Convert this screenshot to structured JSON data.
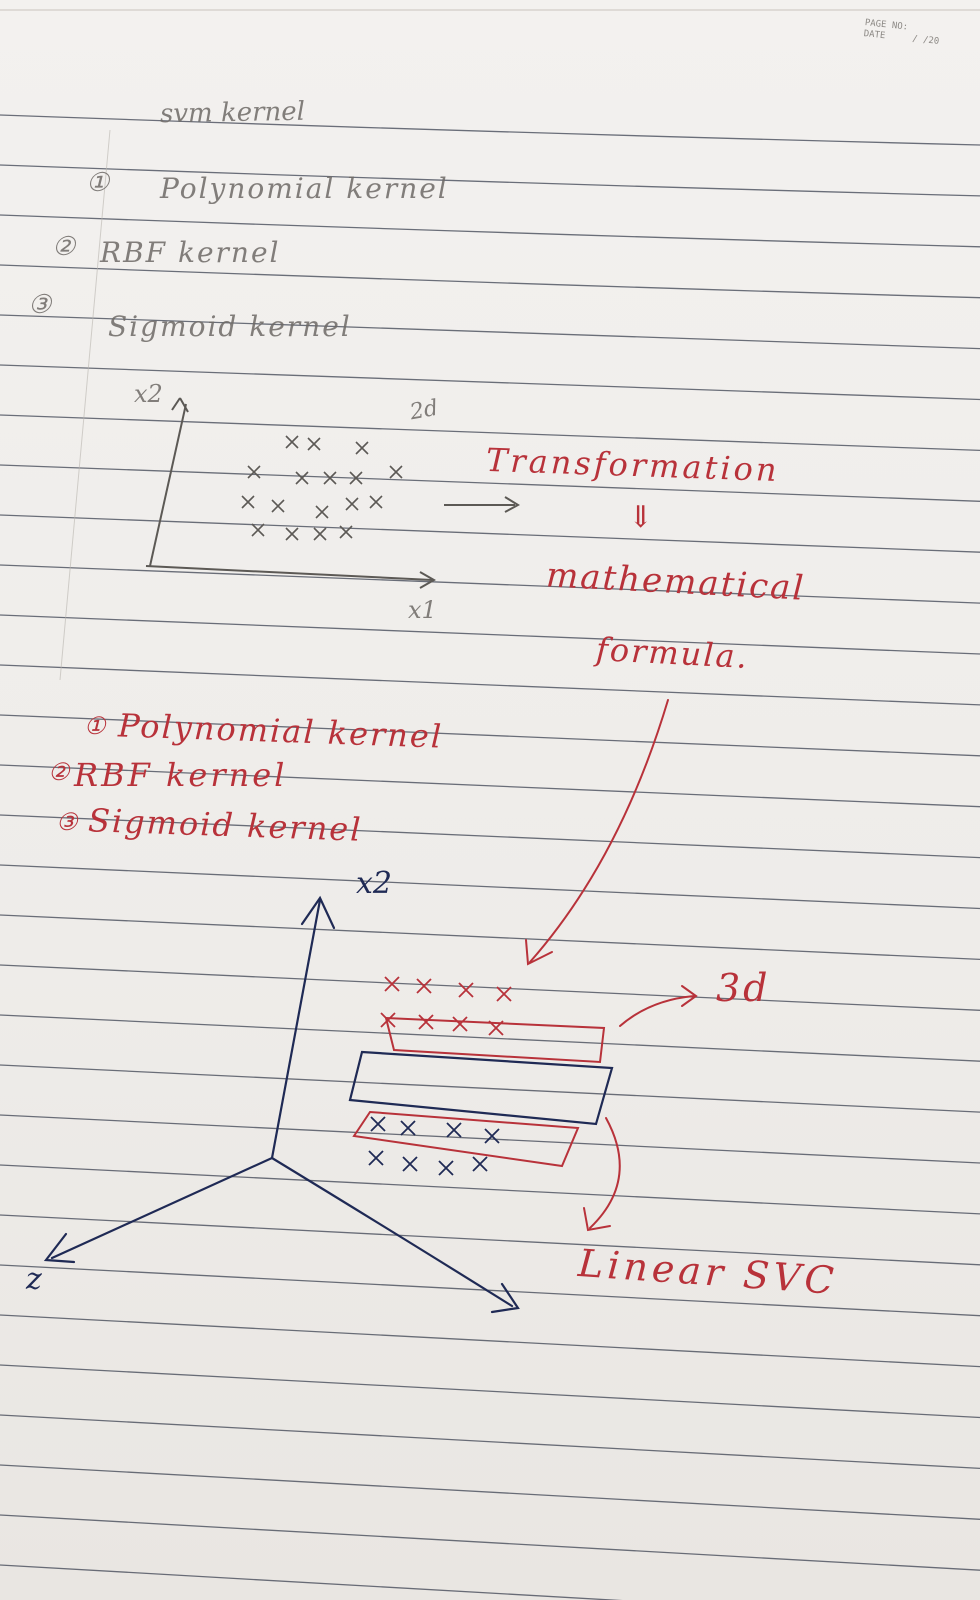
{
  "header": {
    "page_no_label": "PAGE NO:",
    "date_label": "DATE",
    "date_value": "/ /20"
  },
  "pencil_notes": {
    "title": "svm kernel",
    "items": [
      "Polynomial kernel",
      "RBF kernel",
      "Sigmoid kernel"
    ],
    "markers": [
      "①",
      "②",
      "③"
    ],
    "axis_x1": "x1",
    "axis_x2": "x2",
    "label_2d": "2d"
  },
  "red_notes": {
    "transformation": "Transformation",
    "arrow_down": "⇓",
    "mathematical": "mathematical",
    "formula": "formula.",
    "items": [
      "Polynomial kernel",
      "RBF kernel",
      "Sigmoid kernel"
    ],
    "markers": [
      "①",
      "②",
      "③"
    ],
    "label_3d": "3d",
    "linear_svc": "Linear SVC"
  },
  "diagram_3d": {
    "axis_x2": "x2",
    "axis_z": "z"
  },
  "colors": {
    "paper": "#f1efec",
    "rule_line": "#3b4150",
    "red_ink": "#b8323a",
    "blue_ink": "#1f2a55",
    "pencil": "#6e6a66"
  }
}
